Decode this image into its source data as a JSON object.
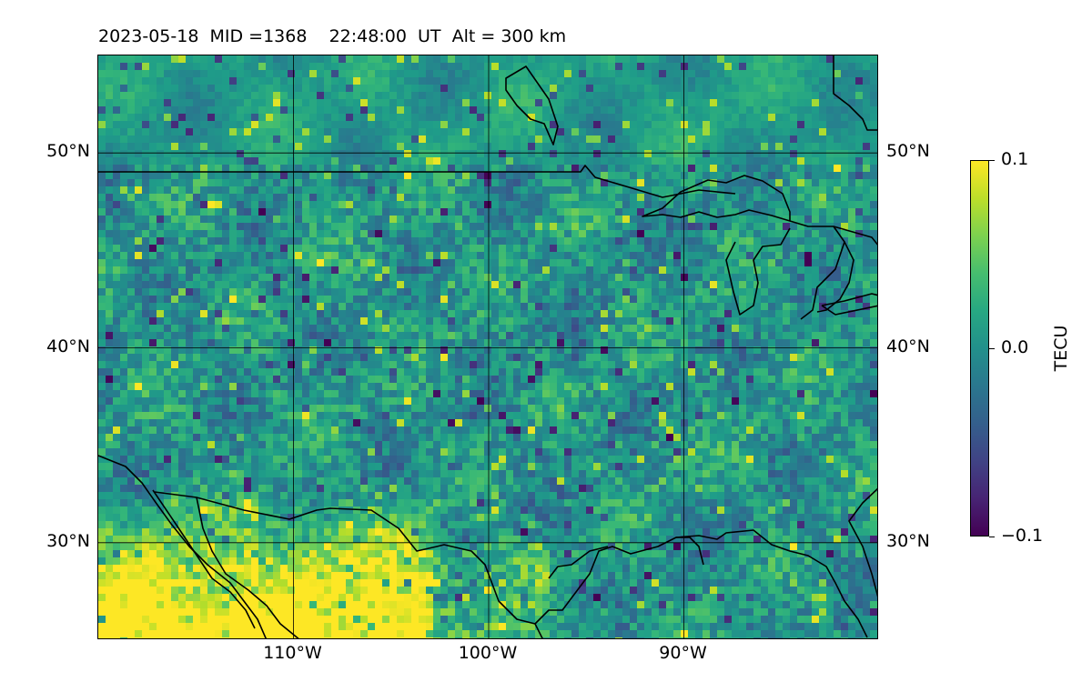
{
  "title": "2023-05-18  MID =1368    22:48:00  UT  Alt = 300 km",
  "map": {
    "lon_range": [
      -120,
      -80
    ],
    "lat_range": [
      25,
      55
    ],
    "lat_ticks": [
      {
        "value": 30,
        "label": "30°N"
      },
      {
        "value": 40,
        "label": "40°N"
      },
      {
        "value": 50,
        "label": "50°N"
      }
    ],
    "lon_ticks": [
      {
        "value": -110,
        "label": "110°W"
      },
      {
        "value": -100,
        "label": "100°W"
      },
      {
        "value": -90,
        "label": "90°W"
      }
    ],
    "gridlines": true,
    "coastlines": true,
    "borders": true,
    "colormap": "viridis"
  },
  "colorbar": {
    "label": "TECU",
    "vmin": -0.1,
    "vmax": 0.1,
    "ticks": [
      {
        "value": 0.1,
        "label": "0.1"
      },
      {
        "value": 0.0,
        "label": "0.0"
      },
      {
        "value": -0.1,
        "label": "−0.1"
      }
    ]
  }
}
